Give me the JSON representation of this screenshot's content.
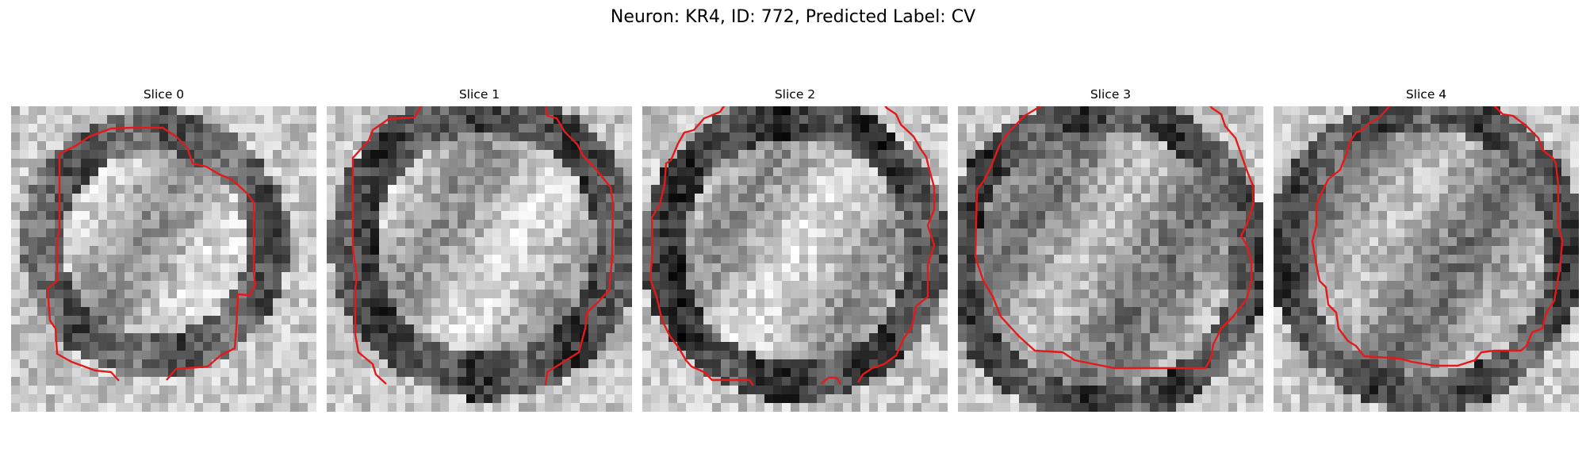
{
  "figure": {
    "title": "Neuron: KR4, ID: 772, Predicted Label: CV"
  },
  "panels": [
    {
      "title": "Slice 0"
    },
    {
      "title": "Slice 1"
    },
    {
      "title": "Slice 2"
    },
    {
      "title": "Slice 3"
    },
    {
      "title": "Slice 4"
    }
  ],
  "colors": {
    "contour": "#e31a1c",
    "colormap": "gray"
  }
}
